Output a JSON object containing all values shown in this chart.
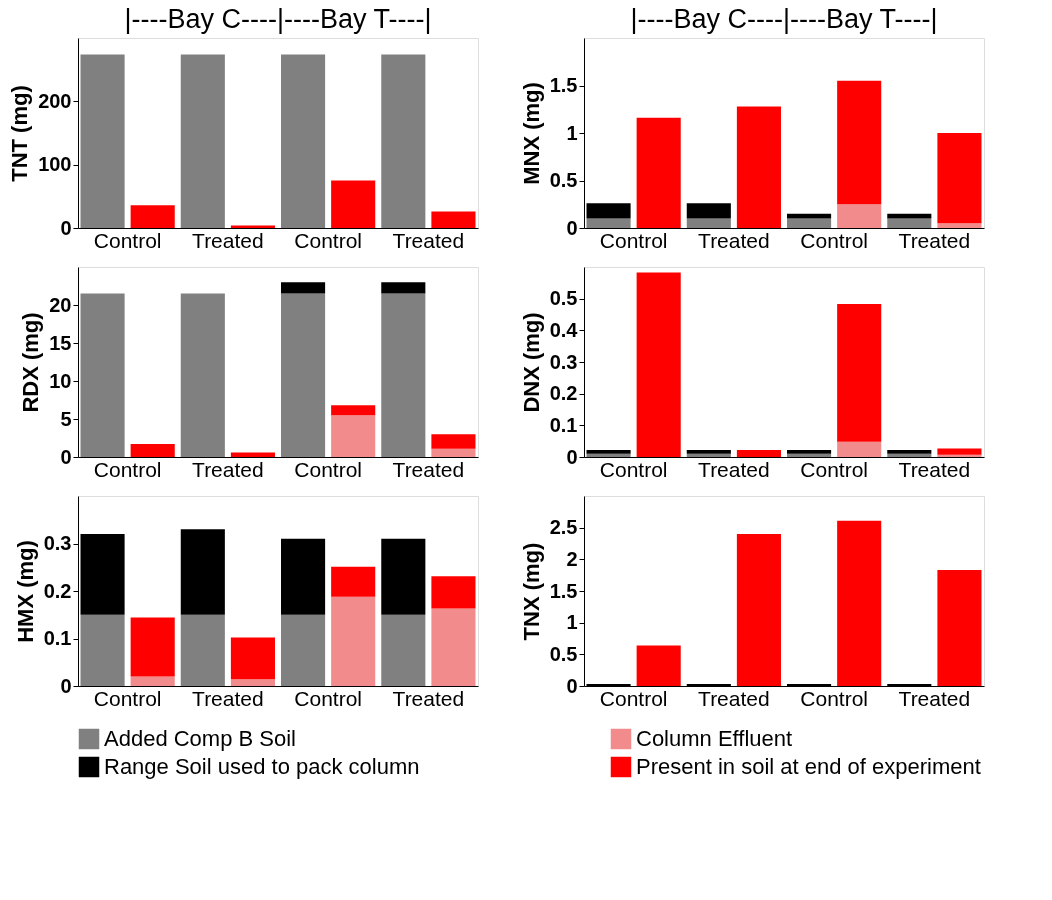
{
  "chart_data": [
    {
      "type": "bar",
      "stacked": true,
      "title": "|----Bay C----|----Bay T----|",
      "ylabel": "TNT (mg)",
      "categories": [
        "Control",
        null,
        "Treated",
        null,
        "Control",
        null,
        "Treated",
        null
      ],
      "ylim": [
        0,
        300
      ],
      "yticks": [
        0,
        100,
        200
      ],
      "grid": false,
      "legend": "bottom",
      "series": [
        {
          "name": "Added Comp B Soil",
          "color": "#808080",
          "values": [
            274,
            null,
            274,
            null,
            274,
            null,
            274,
            null
          ]
        },
        {
          "name": "Range Soil used to pack column",
          "color": "#000000",
          "values": [
            0,
            null,
            0,
            null,
            0,
            null,
            0,
            null
          ]
        },
        {
          "name": "Column Effluent",
          "color": "#f28c8c",
          "values": [
            null,
            0,
            null,
            0,
            null,
            0,
            null,
            0
          ]
        },
        {
          "name": "Present in soil at end of experiment",
          "color": "#ff0000",
          "values": [
            null,
            36,
            null,
            4,
            null,
            75,
            null,
            26
          ]
        }
      ]
    },
    {
      "type": "bar",
      "stacked": true,
      "title": "|----Bay C----|----Bay T----|",
      "ylabel": "MNX (mg)",
      "categories": [
        "Control",
        null,
        "Treated",
        null,
        "Control",
        null,
        "Treated",
        null
      ],
      "ylim": [
        0,
        2
      ],
      "yticks": [
        0,
        0.5,
        1,
        1.5
      ],
      "grid": false,
      "series": [
        {
          "color": "#808080",
          "values": [
            0.1,
            null,
            0.1,
            null,
            0.1,
            null,
            0.1,
            null
          ]
        },
        {
          "color": "#000000",
          "values": [
            0.16,
            null,
            0.16,
            null,
            0.05,
            null,
            0.05,
            null
          ]
        },
        {
          "color": "#f28c8c",
          "values": [
            null,
            0,
            null,
            0,
            null,
            0.25,
            null,
            0.05
          ]
        },
        {
          "color": "#ff0000",
          "values": [
            null,
            1.16,
            null,
            1.28,
            null,
            1.3,
            null,
            0.95
          ]
        }
      ]
    },
    {
      "type": "bar",
      "stacked": true,
      "ylabel": "RDX (mg)",
      "categories": [
        "Control",
        null,
        "Treated",
        null,
        "Control",
        null,
        "Treated",
        null
      ],
      "ylim": [
        0,
        25
      ],
      "yticks": [
        0,
        5,
        10,
        15,
        20
      ],
      "grid": false,
      "series": [
        {
          "color": "#808080",
          "values": [
            21.5,
            null,
            21.5,
            null,
            21.5,
            null,
            21.5,
            null
          ]
        },
        {
          "color": "#000000",
          "values": [
            0,
            null,
            0,
            null,
            1.5,
            null,
            1.5,
            null
          ]
        },
        {
          "color": "#f28c8c",
          "values": [
            null,
            0,
            null,
            0,
            null,
            5.5,
            null,
            1.1
          ]
        },
        {
          "color": "#ff0000",
          "values": [
            null,
            1.7,
            null,
            0.6,
            null,
            1.3,
            null,
            1.9
          ]
        }
      ]
    },
    {
      "type": "bar",
      "stacked": true,
      "ylabel": "DNX (mg)",
      "categories": [
        "Control",
        null,
        "Treated",
        null,
        "Control",
        null,
        "Treated",
        null
      ],
      "ylim": [
        0,
        0.6
      ],
      "yticks": [
        0,
        0.1,
        0.2,
        0.3,
        0.4,
        0.5
      ],
      "grid": false,
      "series": [
        {
          "color": "#808080",
          "values": [
            0.01,
            null,
            0.01,
            null,
            0.01,
            null,
            0.01,
            null
          ]
        },
        {
          "color": "#000000",
          "values": [
            0.012,
            null,
            0.012,
            null,
            0.012,
            null,
            0.012,
            null
          ]
        },
        {
          "color": "#f28c8c",
          "values": [
            null,
            0,
            null,
            0,
            null,
            0.048,
            null,
            0.007
          ]
        },
        {
          "color": "#ff0000",
          "values": [
            null,
            0.583,
            null,
            0.022,
            null,
            0.435,
            null,
            0.02
          ]
        }
      ]
    },
    {
      "type": "bar",
      "stacked": true,
      "ylabel": "HMX (mg)",
      "categories": [
        "Control",
        null,
        "Treated",
        null,
        "Control",
        null,
        "Treated",
        null
      ],
      "ylim": [
        0,
        0.4
      ],
      "yticks": [
        0,
        0.1,
        0.2,
        0.3
      ],
      "grid": false,
      "series": [
        {
          "color": "#808080",
          "values": [
            0.15,
            null,
            0.15,
            null,
            0.15,
            null,
            0.15,
            null
          ]
        },
        {
          "color": "#000000",
          "values": [
            0.17,
            null,
            0.18,
            null,
            0.16,
            null,
            0.16,
            null
          ]
        },
        {
          "color": "#f28c8c",
          "values": [
            null,
            0.02,
            null,
            0.014,
            null,
            0.188,
            null,
            0.163
          ]
        },
        {
          "color": "#ff0000",
          "values": [
            null,
            0.124,
            null,
            0.088,
            null,
            0.063,
            null,
            0.068
          ]
        }
      ]
    },
    {
      "type": "bar",
      "stacked": true,
      "ylabel": "TNX (mg)",
      "categories": [
        "Control",
        null,
        "Treated",
        null,
        "Control",
        null,
        "Treated",
        null
      ],
      "ylim": [
        0,
        3
      ],
      "yticks": [
        0,
        0.5,
        1,
        1.5,
        2,
        2.5
      ],
      "grid": false,
      "series": [
        {
          "color": "#808080",
          "values": [
            0,
            null,
            0,
            null,
            0,
            null,
            0,
            null
          ]
        },
        {
          "color": "#000000",
          "values": [
            0.03,
            null,
            0.03,
            null,
            0.03,
            null,
            0.03,
            null
          ]
        },
        {
          "color": "#f28c8c",
          "values": [
            null,
            0,
            null,
            0,
            null,
            0,
            null,
            0
          ]
        },
        {
          "color": "#ff0000",
          "values": [
            null,
            0.64,
            null,
            2.4,
            null,
            2.61,
            null,
            1.83
          ]
        }
      ]
    }
  ]
}
